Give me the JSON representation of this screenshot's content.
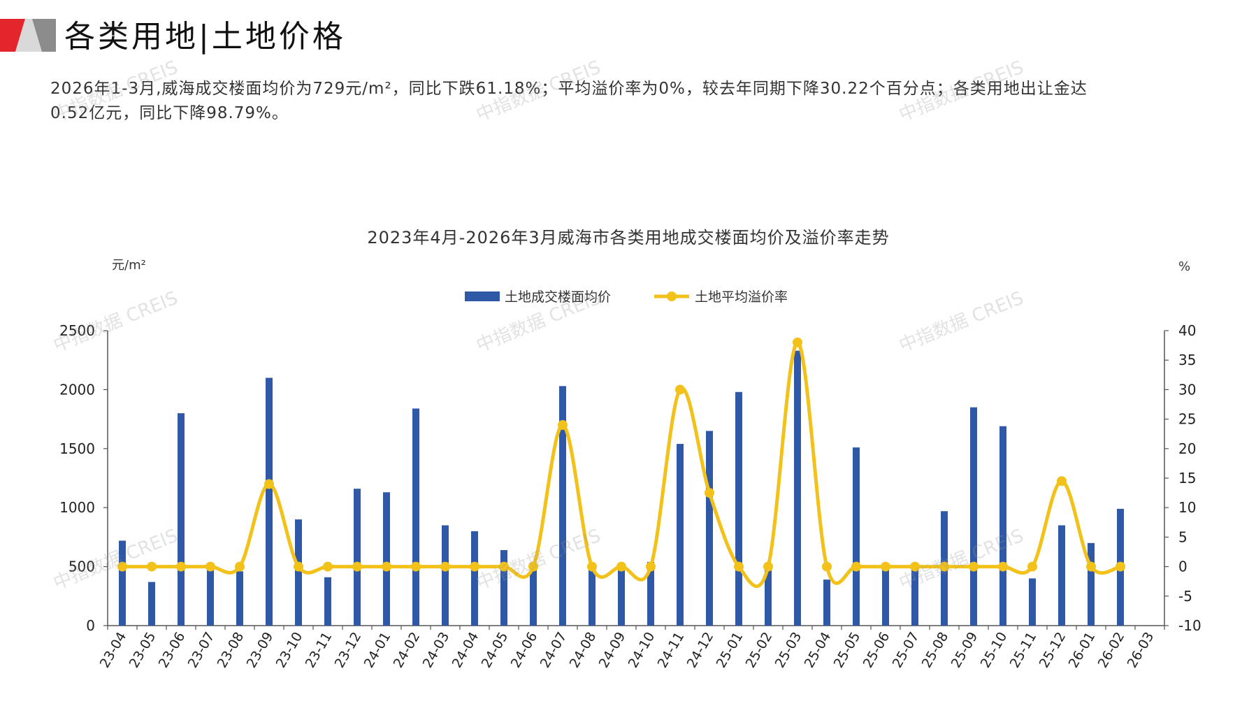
{
  "header": {
    "title": "各类用地|土地价格"
  },
  "summary": {
    "line1": "2026年1-3月,威海成交楼面均价为729元/m²，同比下跌61.18%；平均溢价率为0%，较去年同期下降30.22个百分点；各类用地出让金达",
    "line2": "0.52亿元，同比下降98.79%。"
  },
  "watermark": "中指数据 CREIS",
  "colors": {
    "bar": "#2f58a6",
    "line": "#f2c21a",
    "logo_red": "#e3262b",
    "logo_gray": "#8c8c8c"
  },
  "chart_data": {
    "type": "bar",
    "title": "2023年4月-2026年3月威海市各类用地成交楼面均价及溢价率走势",
    "y_left_unit": "元/m²",
    "y_right_unit": "%",
    "legend": [
      "土地成交楼面均价",
      "土地平均溢价率"
    ],
    "legend_position": "top-center",
    "categories": [
      "23-04",
      "23-05",
      "23-06",
      "23-07",
      "23-08",
      "23-09",
      "23-10",
      "23-11",
      "23-12",
      "24-01",
      "24-02",
      "24-03",
      "24-04",
      "24-05",
      "24-06",
      "24-07",
      "24-08",
      "24-09",
      "24-10",
      "24-11",
      "24-12",
      "25-01",
      "25-02",
      "25-03",
      "25-04",
      "25-05",
      "25-06",
      "25-07",
      "25-08",
      "25-09",
      "25-10",
      "25-11",
      "25-12",
      "26-01",
      "26-02",
      "26-03"
    ],
    "series": [
      {
        "name": "土地成交楼面均价",
        "type": "bar",
        "axis": "left",
        "values": [
          720,
          370,
          1800,
          500,
          460,
          2100,
          900,
          410,
          1160,
          1130,
          1840,
          850,
          800,
          640,
          490,
          2030,
          490,
          500,
          540,
          1540,
          1650,
          1980,
          510,
          2330,
          390,
          1510,
          490,
          480,
          970,
          1850,
          1690,
          400,
          850,
          700,
          990,
          0
        ]
      },
      {
        "name": "土地平均溢价率",
        "type": "line",
        "axis": "right",
        "values": [
          0,
          0,
          0,
          0,
          0,
          14,
          0,
          0,
          0,
          0,
          0,
          0,
          0,
          0,
          0,
          24,
          0,
          0,
          0,
          30,
          12.5,
          0,
          0,
          38,
          0,
          0,
          0,
          0,
          0,
          0,
          0,
          0,
          14.5,
          0,
          0,
          null
        ]
      }
    ],
    "y_left": {
      "min": 0,
      "max": 2500,
      "ticks": [
        0,
        500,
        1000,
        1500,
        2000,
        2500
      ]
    },
    "y_right": {
      "min": -10,
      "max": 40,
      "ticks": [
        -10,
        -5,
        0,
        5,
        10,
        15,
        20,
        25,
        30,
        35,
        40
      ]
    },
    "grid": false
  }
}
